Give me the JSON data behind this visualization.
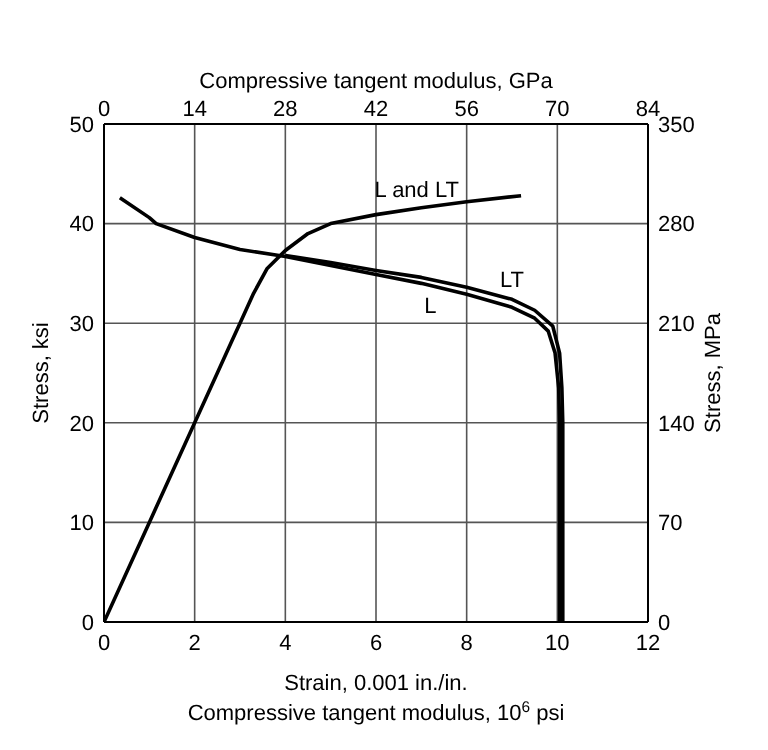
{
  "chart_data": {
    "type": "line",
    "xlabel": "Strain, 0.001 in./in.\nCompressive tangent modulus, 10$^{6}$ psi",
    "x2label": "Compressive tangent modulus, GPa",
    "ylabel": "Stress, ksi",
    "y2label": "Stress, MPa",
    "xlim": [
      0,
      12
    ],
    "xticks": [
      0,
      2,
      4,
      6,
      8,
      10,
      12
    ],
    "x2lim": [
      0,
      84
    ],
    "x2ticks": [
      0,
      14,
      28,
      42,
      56,
      70,
      84
    ],
    "ylim": [
      0,
      50
    ],
    "yticks": [
      0,
      10,
      20,
      30,
      40,
      50
    ],
    "y2lim": [
      0,
      350
    ],
    "y2ticks": [
      0,
      70,
      140,
      210,
      280,
      350
    ],
    "grid": true,
    "legend": false,
    "marker": "none",
    "line_style": "solid",
    "series": [
      {
        "color": "#000000",
        "x": [
          0,
          1,
          2,
          2.5,
          2.8,
          3,
          3.3,
          3.6,
          4,
          4.5,
          5,
          6,
          7,
          8,
          9.2
        ],
        "values": [
          0,
          10,
          20,
          25,
          28,
          30,
          33,
          35.5,
          37.3,
          39,
          40,
          40.9,
          41.6,
          42.2,
          42.8
        ]
      },
      {
        "color": "#000000",
        "x": [
          0.35,
          1,
          1.15,
          2,
          3,
          4,
          5,
          6,
          7,
          8,
          9,
          9.5,
          9.8,
          9.95,
          10.03,
          10.05,
          10.05
        ],
        "values": [
          42.6,
          40.6,
          40,
          38.6,
          37.4,
          36.7,
          35.8,
          34.9,
          34,
          32.9,
          31.6,
          30.5,
          29.2,
          27,
          23.5,
          20,
          0
        ]
      },
      {
        "color": "#000000",
        "x": [
          4,
          5,
          6,
          7,
          8,
          9,
          9.5,
          9.9,
          10.05,
          10.1,
          10.12,
          10.12
        ],
        "values": [
          36.8,
          36.1,
          35.3,
          34.6,
          33.6,
          32.4,
          31.3,
          29.7,
          27,
          23.5,
          20,
          0
        ]
      }
    ],
    "annotations": [
      {
        "text": "L and LT",
        "x": 6.9,
        "y": 41.5
      },
      {
        "text": "LT",
        "x": 9,
        "y": 32.4
      },
      {
        "text": "L",
        "x": 7.2,
        "y": 33.8
      }
    ]
  }
}
